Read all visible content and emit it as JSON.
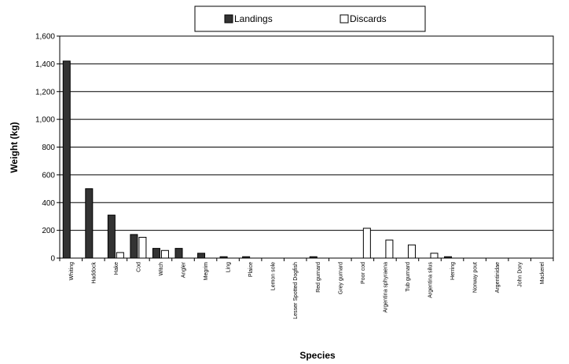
{
  "chart_data": {
    "type": "bar",
    "xlabel": "Species",
    "ylabel": "Weight (kg)",
    "ylim": [
      0,
      1600
    ],
    "yticks": [
      "0",
      "200",
      "400",
      "600",
      "800",
      "1,000",
      "1,200",
      "1,400",
      "1,600"
    ],
    "grid": true,
    "legend_position": "top",
    "categories": [
      "Whiting",
      "Haddock",
      "Hake",
      "Cod",
      "Witch",
      "Angler",
      "Megrim",
      "Ling",
      "Plaice",
      "Lemon sole",
      "Lesser Spotted Dogfish",
      "Red gurnard",
      "Grey gurnard",
      "Poor cod",
      "Argentina sphyraena",
      "Tub gurnard",
      "Argentina silus",
      "Herring",
      "Norway pout",
      "Argentinidae",
      "John Dory",
      "Mackerel"
    ],
    "series": [
      {
        "name": "Landings",
        "color": "#333333",
        "values": [
          1420,
          500,
          310,
          170,
          70,
          70,
          35,
          10,
          10,
          0,
          0,
          10,
          0,
          0,
          0,
          0,
          0,
          10,
          0,
          0,
          0,
          0
        ]
      },
      {
        "name": "Discards",
        "color": "#ffffff",
        "values": [
          0,
          0,
          40,
          150,
          55,
          0,
          0,
          0,
          0,
          0,
          0,
          0,
          0,
          215,
          130,
          95,
          35,
          0,
          0,
          0,
          0,
          0
        ]
      }
    ]
  }
}
